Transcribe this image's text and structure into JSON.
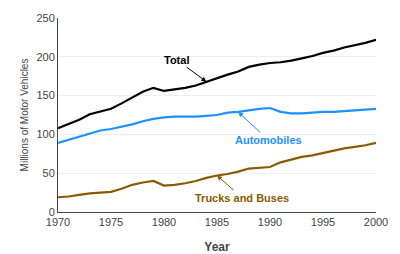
{
  "chart_data": {
    "type": "line",
    "xlabel": "Year",
    "ylabel": "Millions of Motor Vehicles",
    "x": [
      1970,
      1971,
      1972,
      1973,
      1974,
      1975,
      1976,
      1977,
      1978,
      1979,
      1980,
      1981,
      1982,
      1983,
      1984,
      1985,
      1986,
      1987,
      1988,
      1989,
      1990,
      1991,
      1992,
      1993,
      1994,
      1995,
      1996,
      1997,
      1998,
      1999,
      2000
    ],
    "series": [
      {
        "name": "Total",
        "color": "#000000",
        "values": [
          108,
          113,
          119,
          126,
          130,
          133,
          140,
          148,
          155,
          160,
          156,
          158,
          160,
          163,
          168,
          172,
          177,
          181,
          187,
          190,
          192,
          193,
          195,
          198,
          201,
          205,
          208,
          212,
          215,
          218,
          222
        ]
      },
      {
        "name": "Automobiles",
        "color": "#1e90ff",
        "values": [
          89,
          93,
          97,
          102,
          105,
          107,
          110,
          113,
          117,
          120,
          122,
          123,
          123,
          123,
          124,
          125,
          128,
          129,
          131,
          133,
          134,
          129,
          127,
          127,
          128,
          129,
          129,
          130,
          131,
          132,
          133
        ]
      },
      {
        "name": "Trucks and Buses",
        "color": "#8B5A00",
        "values": [
          19,
          20,
          22,
          24,
          25,
          26,
          30,
          35,
          38,
          40,
          34,
          35,
          37,
          40,
          44,
          47,
          49,
          52,
          56,
          57,
          58,
          64,
          68,
          71,
          73,
          76,
          79,
          82,
          84,
          86,
          89
        ]
      }
    ],
    "xlim": [
      1970,
      2000
    ],
    "ylim": [
      0,
      250
    ],
    "xticks": [
      1970,
      1975,
      1980,
      1985,
      1990,
      1995,
      2000
    ],
    "yticks": [
      0,
      50,
      100,
      150,
      200,
      250
    ],
    "grid": true
  }
}
